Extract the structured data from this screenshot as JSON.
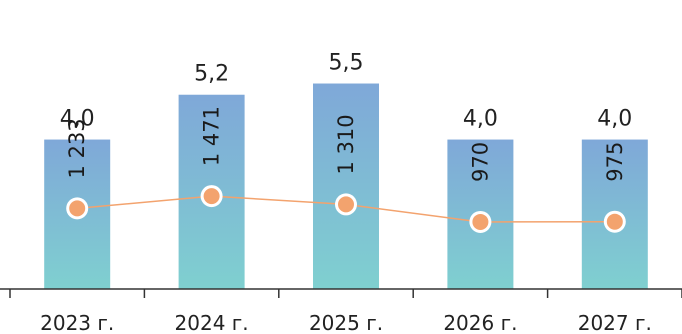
{
  "chart_data": {
    "type": "bar",
    "categories": [
      "2023 г.",
      "2024 г.",
      "2025 г.",
      "2026 г.",
      "2027 г."
    ],
    "bar_labels": [
      "4,0",
      "5,2",
      "5,5",
      "4,0",
      "4,0"
    ],
    "series": [
      {
        "values": [
          4.0,
          5.2,
          5.5,
          4.0,
          4.0
        ],
        "color_top": "#7fa8d8",
        "color_bottom": "#7fd0d0"
      },
      {
        "type": "line",
        "values": [
          1233,
          1471,
          1310,
          970,
          975
        ],
        "labels": [
          "1 233",
          "1 471",
          "1 310",
          "970",
          "975"
        ],
        "line_color": "#f3a36e",
        "marker_color": "#f3a36e"
      }
    ],
    "grid": false,
    "legend": "none"
  }
}
